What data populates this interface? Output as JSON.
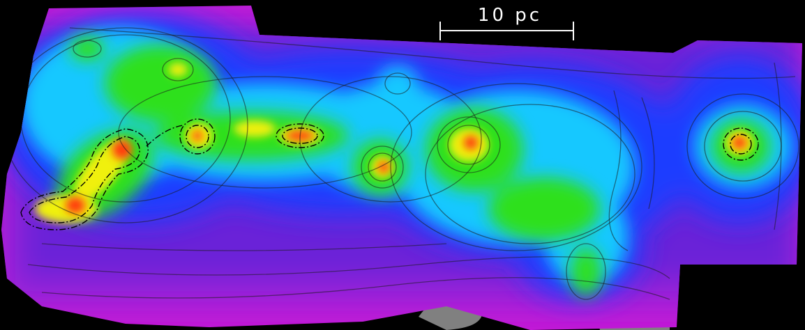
{
  "scale_bar": {
    "label": "10 pc",
    "color": "#ffffff"
  },
  "colors": {
    "background": "#000000",
    "outer_edge": "#c21ad6",
    "low": "#7a18d8",
    "mid_low": "#1a4bff",
    "mid": "#11d4ff",
    "mid_high": "#27e01a",
    "high": "#f0f010",
    "peak": "#ff3a10",
    "contour_line": "#1b1b1b",
    "noise_patch": "#808080"
  }
}
